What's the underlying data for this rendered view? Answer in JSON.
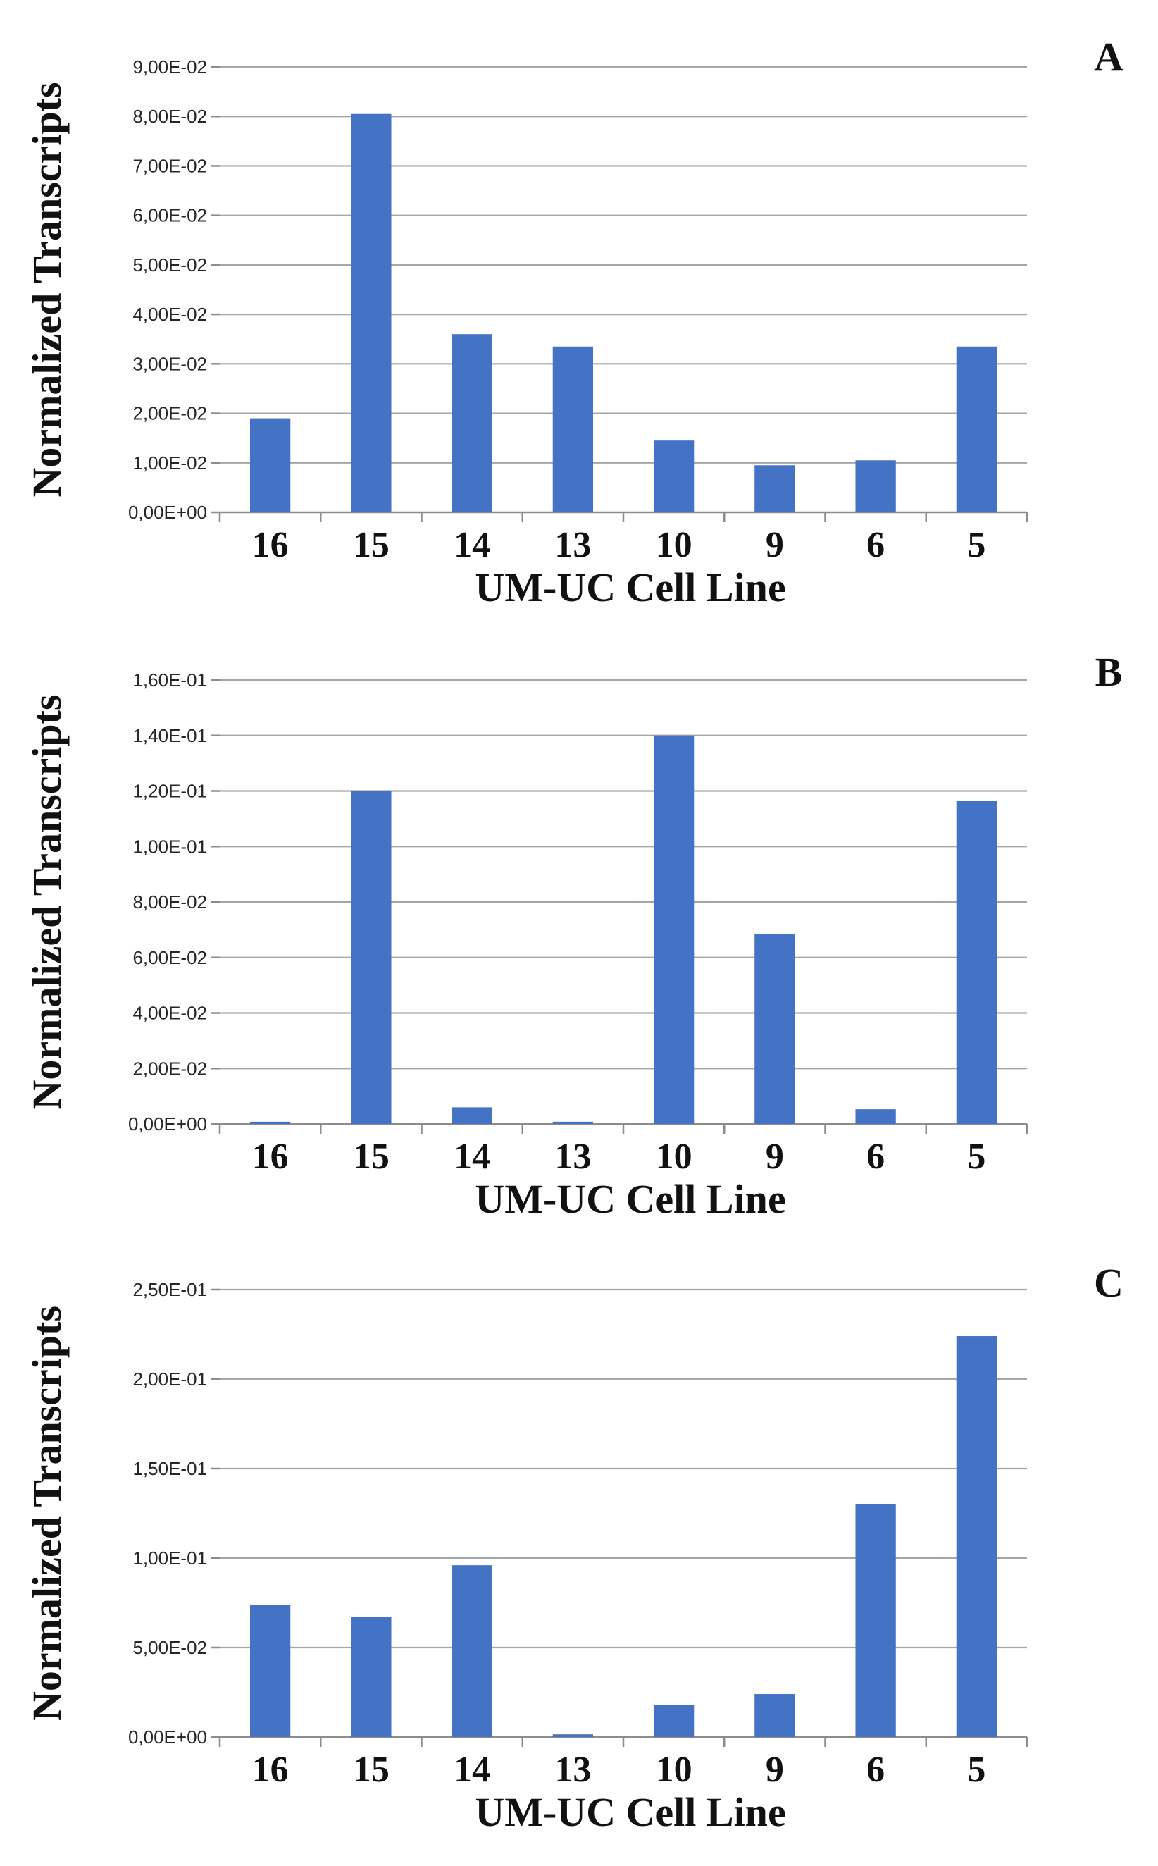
{
  "figure": {
    "bar_color": "#4472c4"
  },
  "chart_data": [
    {
      "type": "bar",
      "panel": "A",
      "title": "",
      "xlabel": "UM-UC Cell Line",
      "ylabel": "Normalized Transcripts",
      "categories": [
        "16",
        "15",
        "14",
        "13",
        "10",
        "9",
        "6",
        "5"
      ],
      "values": [
        0.019,
        0.0805,
        0.036,
        0.0335,
        0.0145,
        0.0095,
        0.0105,
        0.0335
      ],
      "ylim": [
        0,
        0.09
      ],
      "yticks": [
        0,
        0.01,
        0.02,
        0.03,
        0.04,
        0.05,
        0.06,
        0.07,
        0.08,
        0.09
      ],
      "ytick_labels": [
        "0,00E+00",
        "1,00E-02",
        "2,00E-02",
        "3,00E-02",
        "4,00E-02",
        "5,00E-02",
        "6,00E-02",
        "7,00E-02",
        "8,00E-02",
        "9,00E-02"
      ],
      "grid": true,
      "legend": "none"
    },
    {
      "type": "bar",
      "panel": "B",
      "title": "",
      "xlabel": "UM-UC Cell Line",
      "ylabel": "Normalized Transcripts",
      "categories": [
        "16",
        "15",
        "14",
        "13",
        "10",
        "9",
        "6",
        "5"
      ],
      "values": [
        0.0008,
        0.12,
        0.006,
        0.0008,
        0.14,
        0.0685,
        0.0053,
        0.1165
      ],
      "ylim": [
        0,
        0.16
      ],
      "yticks": [
        0,
        0.02,
        0.04,
        0.06,
        0.08,
        0.1,
        0.12,
        0.14,
        0.16
      ],
      "ytick_labels": [
        "0,00E+00",
        "2,00E-02",
        "4,00E-02",
        "6,00E-02",
        "8,00E-02",
        "1,00E-01",
        "1,20E-01",
        "1,40E-01",
        "1,60E-01"
      ],
      "grid": true,
      "legend": "none"
    },
    {
      "type": "bar",
      "panel": "C",
      "title": "",
      "xlabel": "UM-UC Cell Line",
      "ylabel": "Normalized Transcripts",
      "categories": [
        "16",
        "15",
        "14",
        "13",
        "10",
        "9",
        "6",
        "5"
      ],
      "values": [
        0.074,
        0.067,
        0.096,
        0.0015,
        0.018,
        0.024,
        0.13,
        0.224
      ],
      "ylim": [
        0,
        0.25
      ],
      "yticks": [
        0,
        0.05,
        0.1,
        0.15,
        0.2,
        0.25
      ],
      "ytick_labels": [
        "0,00E+00",
        "5,00E-02",
        "1,00E-01",
        "1,50E-01",
        "2,00E-01",
        "2,50E-01"
      ],
      "grid": true,
      "legend": "none"
    }
  ]
}
